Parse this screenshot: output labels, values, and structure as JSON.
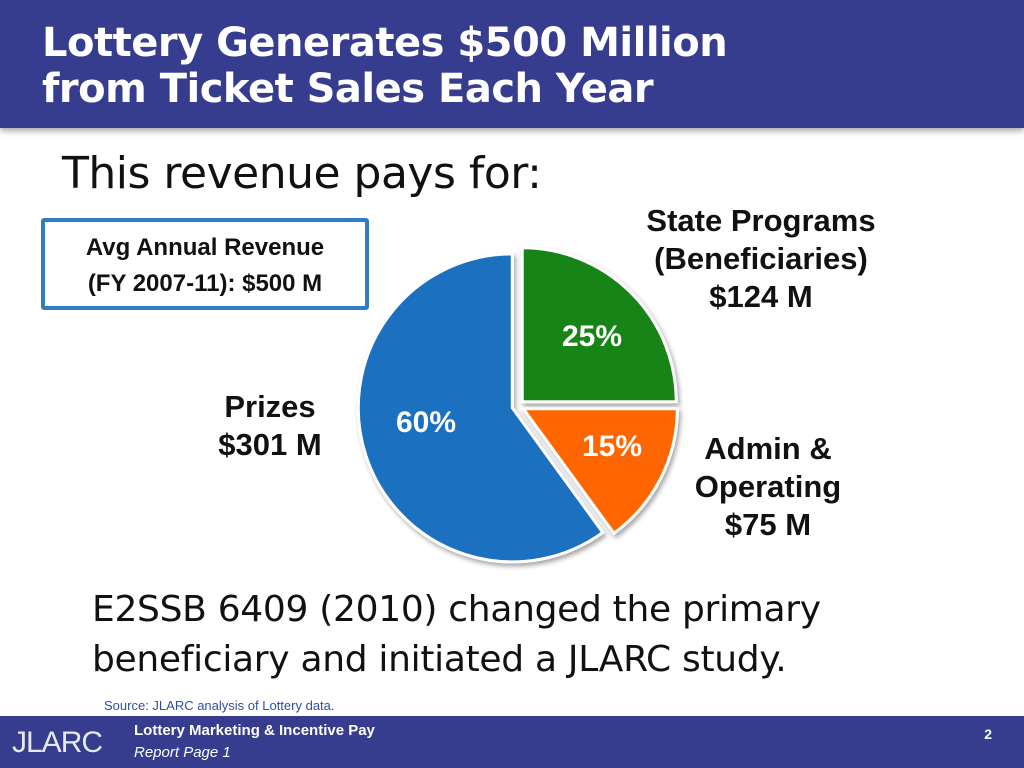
{
  "header": {
    "title_line1": "Lottery Generates $500 Million",
    "title_line2": "from Ticket Sales Each Year"
  },
  "subtitle": "This revenue pays for:",
  "revenue_box": {
    "line1": "Avg Annual Revenue",
    "line2": "(FY 2007-11): $500 M"
  },
  "chart_data": {
    "type": "pie",
    "slices": [
      {
        "label_lines": [
          "State Programs",
          "(Beneficiaries)",
          "$124 M"
        ],
        "value": 124,
        "percent": 25,
        "percent_label": "25%",
        "color": "#138413"
      },
      {
        "label_lines": [
          "Admin &",
          "Operating",
          "$75 M"
        ],
        "value": 75,
        "percent": 15,
        "percent_label": "15%",
        "color": "#ff6600"
      },
      {
        "label_lines": [
          "Prizes",
          "$301 M"
        ],
        "value": 301,
        "percent": 60,
        "percent_label": "60%",
        "color": "#1a70c0"
      }
    ],
    "start_angle_deg": 0,
    "direction": "clockwise",
    "exploded": true
  },
  "note": {
    "line1": "E2SSB 6409 (2010) changed the primary",
    "line2": "beneficiary and initiated a JLARC study."
  },
  "source": "Source: JLARC analysis of Lottery data.",
  "footer": {
    "logo": "JLARC",
    "title": "Lottery Marketing & Incentive Pay",
    "subtitle": "Report Page 1",
    "page_number": "2"
  },
  "colors": {
    "header_bg": "#363d8f",
    "box_border": "#2f7ec1"
  }
}
